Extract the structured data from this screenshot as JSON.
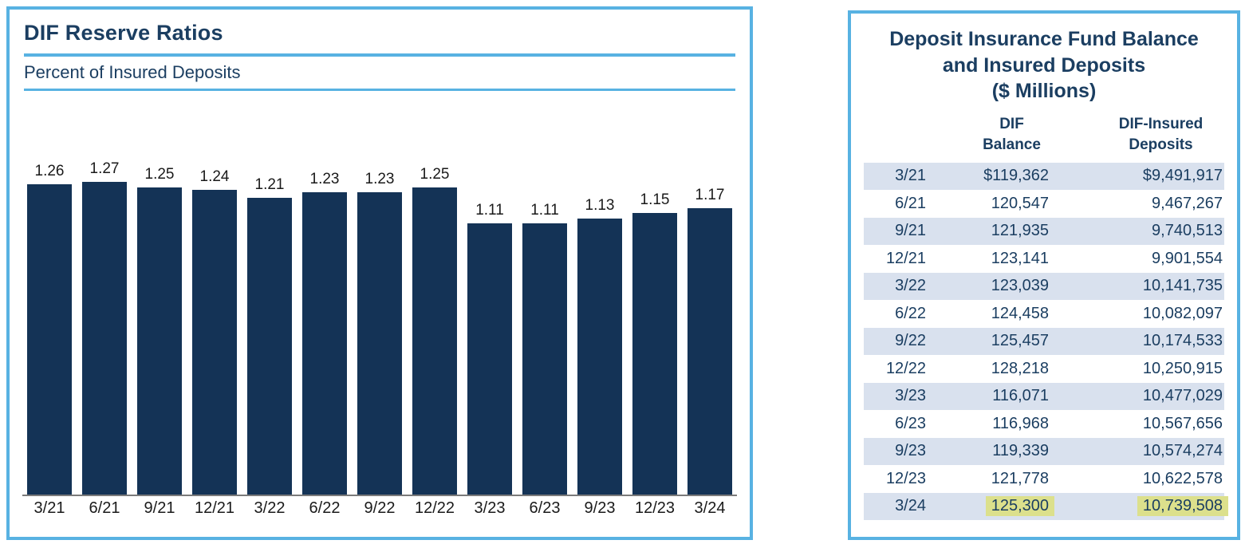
{
  "chart_data": [
    {
      "type": "bar",
      "title": "DIF Reserve Ratios",
      "subtitle": "Percent of Insured Deposits",
      "categories": [
        "3/21",
        "6/21",
        "9/21",
        "12/21",
        "3/22",
        "6/22",
        "9/22",
        "12/22",
        "3/23",
        "6/23",
        "9/23",
        "12/23",
        "3/24"
      ],
      "values": [
        1.26,
        1.27,
        1.25,
        1.24,
        1.21,
        1.23,
        1.23,
        1.25,
        1.11,
        1.11,
        1.13,
        1.15,
        1.17
      ],
      "data_labels": true,
      "grid": false,
      "legend": "none",
      "xlabel": "",
      "ylabel": "",
      "ylim_implied": [
        0,
        1.3
      ],
      "bar_color": "#143356"
    },
    {
      "type": "table",
      "title": "Deposit Insurance Fund Balance\nand Insured Deposits\n($ Millions)",
      "headers": [
        "DIF\nBalance",
        "DIF-Insured\nDeposits"
      ],
      "rows": [
        {
          "date": "3/21",
          "dif_balance": "$119,362",
          "insured_deposits": "$9,491,917",
          "shaded": true,
          "highlighted": false
        },
        {
          "date": "6/21",
          "dif_balance": "120,547",
          "insured_deposits": "9,467,267",
          "shaded": false,
          "highlighted": false
        },
        {
          "date": "9/21",
          "dif_balance": "121,935",
          "insured_deposits": "9,740,513",
          "shaded": true,
          "highlighted": false
        },
        {
          "date": "12/21",
          "dif_balance": "123,141",
          "insured_deposits": "9,901,554",
          "shaded": false,
          "highlighted": false
        },
        {
          "date": "3/22",
          "dif_balance": "123,039",
          "insured_deposits": "10,141,735",
          "shaded": true,
          "highlighted": false
        },
        {
          "date": "6/22",
          "dif_balance": "124,458",
          "insured_deposits": "10,082,097",
          "shaded": false,
          "highlighted": false
        },
        {
          "date": "9/22",
          "dif_balance": "125,457",
          "insured_deposits": "10,174,533",
          "shaded": true,
          "highlighted": false
        },
        {
          "date": "12/22",
          "dif_balance": "128,218",
          "insured_deposits": "10,250,915",
          "shaded": false,
          "highlighted": false
        },
        {
          "date": "3/23",
          "dif_balance": "116,071",
          "insured_deposits": "10,477,029",
          "shaded": true,
          "highlighted": false
        },
        {
          "date": "6/23",
          "dif_balance": "116,968",
          "insured_deposits": "10,567,656",
          "shaded": false,
          "highlighted": false
        },
        {
          "date": "9/23",
          "dif_balance": "119,339",
          "insured_deposits": "10,574,274",
          "shaded": true,
          "highlighted": false
        },
        {
          "date": "12/23",
          "dif_balance": "121,778",
          "insured_deposits": "10,622,578",
          "shaded": false,
          "highlighted": false
        },
        {
          "date": "3/24",
          "dif_balance": "125,300",
          "insured_deposits": "10,739,508",
          "shaded": true,
          "highlighted": true
        }
      ],
      "highlight_color": "#dce08c",
      "row_shade_color": "#d9e1ee"
    }
  ],
  "colors": {
    "navy_text": "#1b3e61",
    "bar_navy": "#143356",
    "accent_blue": "#58b2e2",
    "row_shade": "#d9e1ee",
    "highlight": "#dce08c",
    "axis_gray": "#7a7a7a"
  }
}
